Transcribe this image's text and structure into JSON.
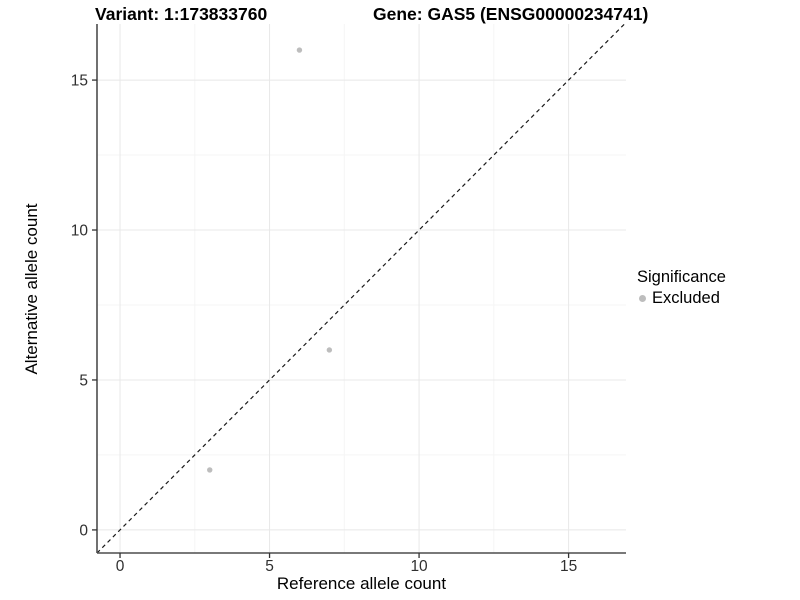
{
  "header": {
    "variant_title": "Variant: 1:173833760",
    "gene_title": "Gene: GAS5 (ENSG00000234741)"
  },
  "legend": {
    "title": "Significance",
    "items": [
      {
        "label": "Excluded",
        "color": "#bdbdbd"
      }
    ]
  },
  "chart_data": {
    "type": "scatter",
    "title": "Variant: 1:173833760   Gene: GAS5 (ENSG00000234741)",
    "xlabel": "Reference allele count",
    "ylabel": "Alternative allele count",
    "xlim": [
      -0.77,
      16.92
    ],
    "ylim": [
      -0.77,
      16.87
    ],
    "x_major_ticks": [
      0,
      5,
      10,
      15
    ],
    "y_major_ticks": [
      0,
      5,
      10,
      15
    ],
    "x_minor_ticks": [
      2.5,
      7.5,
      12.5
    ],
    "y_minor_ticks": [
      2.5,
      7.5,
      12.5
    ],
    "grid": "major+minor",
    "legend_position": "right-middle",
    "series": [
      {
        "name": "Excluded",
        "color": "#bdbdbd",
        "points": [
          [
            6,
            16
          ],
          [
            7,
            6
          ],
          [
            3,
            2
          ]
        ]
      }
    ],
    "identity_line": {
      "type": "y=x",
      "style": "dashed",
      "color": "#1a1a1a"
    }
  },
  "style": {
    "grid_major": "#e8e8e8",
    "grid_minor": "#f5f5f5",
    "axis_line": "#4d4d4d",
    "tick_color": "#333333",
    "tick_label_color": "#303030",
    "point_color": "#bdbdbd"
  }
}
